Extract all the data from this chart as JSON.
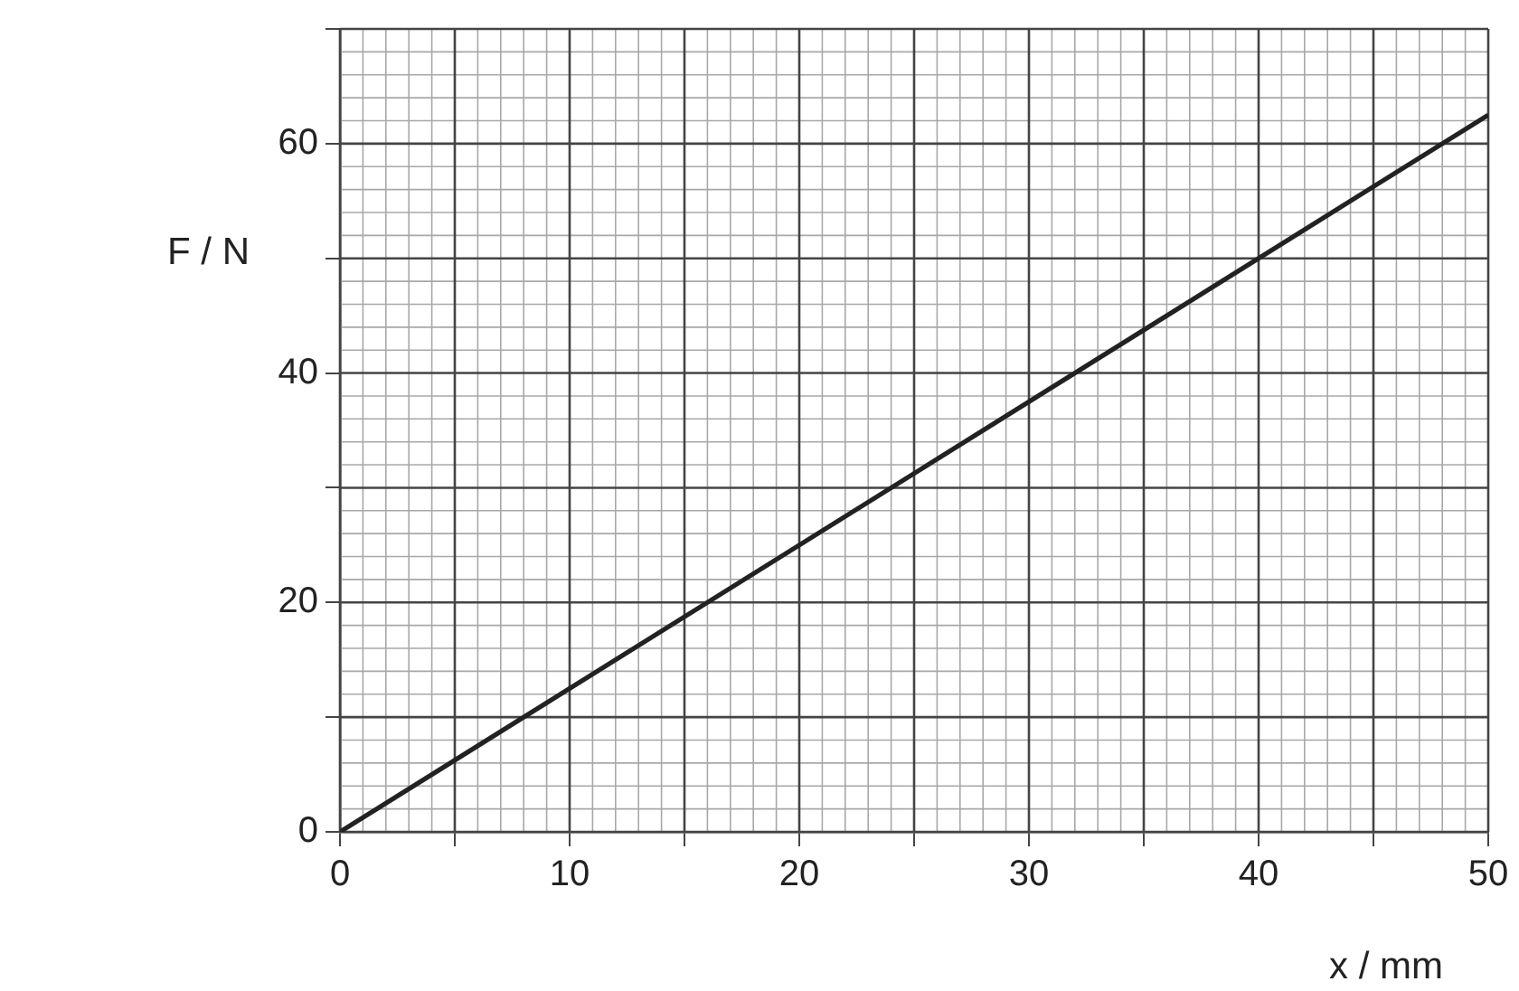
{
  "chart_data": {
    "type": "line",
    "xlabel": "x / mm",
    "ylabel": "F / N",
    "x": [
      0,
      50
    ],
    "series": [
      {
        "color": "#222222",
        "values": [
          0,
          62.5
        ]
      }
    ],
    "xlim": [
      0,
      50
    ],
    "ylim": [
      0,
      70
    ],
    "xticks": [
      0,
      {
        "value": 5,
        "label": null
      },
      10,
      {
        "value": 15,
        "label": null
      },
      20,
      {
        "value": 25,
        "label": null
      },
      30,
      {
        "value": 35,
        "label": null
      },
      40,
      {
        "value": 45,
        "label": null
      },
      50
    ],
    "yticks": [
      0,
      {
        "value": 10,
        "label": null
      },
      20,
      {
        "value": 30,
        "label": null
      },
      40,
      {
        "value": 50,
        "label": null
      },
      60,
      {
        "value": 70,
        "label": null
      }
    ],
    "grid": true,
    "legend": false,
    "marker": "none",
    "line_style": "solid"
  }
}
